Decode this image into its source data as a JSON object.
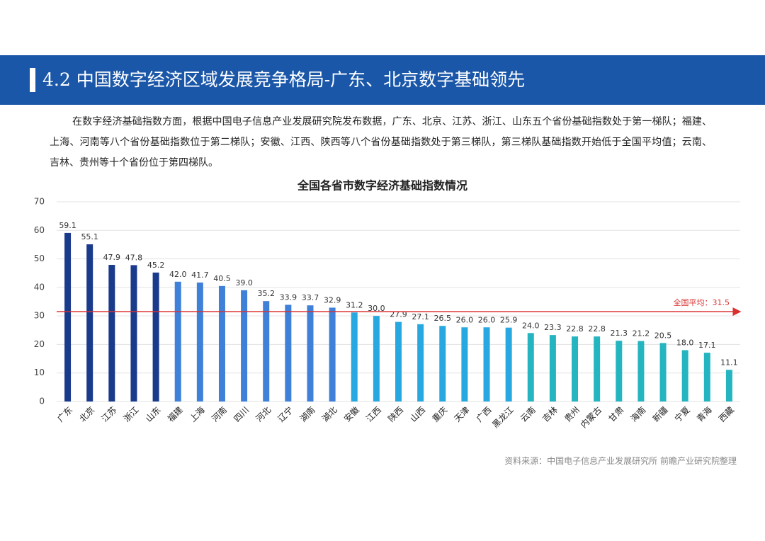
{
  "header": {
    "title": "4.2 中国数字经济区域发展竞争格局-广东、北京数字基础领先"
  },
  "paragraph": "在数字经济基础指数方面，根据中国电子信息产业发展研究院发布数据，广东、北京、江苏、浙江、山东五个省份基础指数处于第一梯队；福建、上海、河南等八个省份基础指数位于第二梯队；安徽、江西、陕西等八个省份基础指数处于第三梯队，第三梯队基础指数开始低于全国平均值；云南、吉林、贵州等十个省份位于第四梯队。",
  "source": "资料来源：中国电子信息产业发展研究所 前瞻产业研究院整理",
  "chart_data": {
    "type": "bar",
    "title": "全国各省市数字经济基础指数情况",
    "categories": [
      "广东",
      "北京",
      "江苏",
      "浙江",
      "山东",
      "福建",
      "上海",
      "河南",
      "四川",
      "河北",
      "辽宁",
      "湖南",
      "湖北",
      "安徽",
      "江西",
      "陕西",
      "山西",
      "重庆",
      "天津",
      "广西",
      "黑龙江",
      "云南",
      "吉林",
      "贵州",
      "内蒙古",
      "甘肃",
      "海南",
      "新疆",
      "宁夏",
      "青海",
      "西藏"
    ],
    "values": [
      59.1,
      55.1,
      47.9,
      47.8,
      45.2,
      42.0,
      41.7,
      40.5,
      39.0,
      35.2,
      33.9,
      33.7,
      32.9,
      31.2,
      30.0,
      27.9,
      27.1,
      26.5,
      26.0,
      26.0,
      25.9,
      24.0,
      23.3,
      22.8,
      22.8,
      21.3,
      21.2,
      20.5,
      18.0,
      17.1,
      11.1
    ],
    "value_labels": [
      "59.1",
      "55.1",
      "47.9",
      "47.8",
      "45.2",
      "42.0",
      "41.7",
      "40.5",
      "39.0",
      "35.2",
      "33.9",
      "33.7",
      "32.9",
      "31.2",
      "30.0",
      "27.9",
      "27.1",
      "26.5",
      "26.0",
      "26.0",
      "25.9",
      "24.0",
      "23.3",
      "22.8",
      "22.8",
      "21.3",
      "21.2",
      "20.5",
      "18.0",
      "17.1",
      "11.1"
    ],
    "colors": [
      "#1a3a8c",
      "#1a3a8c",
      "#1a3a8c",
      "#1a3a8c",
      "#1a3a8c",
      "#3f80d8",
      "#3f80d8",
      "#3f80d8",
      "#3f80d8",
      "#3f80d8",
      "#3f80d8",
      "#3f80d8",
      "#3f80d8",
      "#28a8e0",
      "#28a8e0",
      "#28a8e0",
      "#28a8e0",
      "#28a8e0",
      "#28a8e0",
      "#28a8e0",
      "#28a8e0",
      "#25b5c0",
      "#25b5c0",
      "#25b5c0",
      "#25b5c0",
      "#25b5c0",
      "#25b5c0",
      "#25b5c0",
      "#25b5c0",
      "#25b5c0",
      "#25b5c0"
    ],
    "average": {
      "value": 31.5,
      "label": "全国平均：31.5",
      "color": "#d93030"
    },
    "ylim": [
      0,
      70
    ],
    "yticks": [
      0,
      10,
      20,
      30,
      40,
      50,
      60,
      70
    ],
    "grid": true
  }
}
